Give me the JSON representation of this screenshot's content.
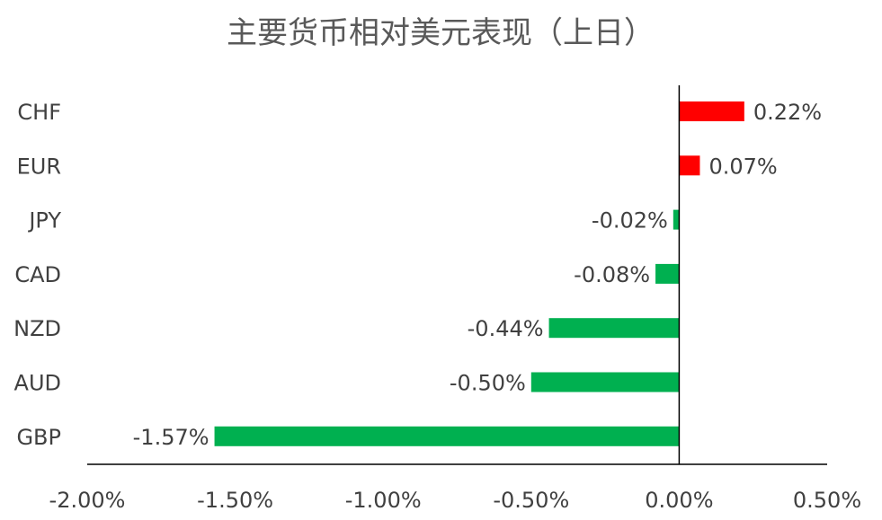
{
  "chart_data": {
    "type": "bar",
    "orientation": "horizontal",
    "title": "主要货币相对美元表现（上日）",
    "categories": [
      "CHF",
      "EUR",
      "JPY",
      "CAD",
      "NZD",
      "AUD",
      "GBP"
    ],
    "values": [
      0.22,
      0.07,
      -0.02,
      -0.08,
      -0.44,
      -0.5,
      -1.57
    ],
    "data_labels": [
      "0.22%",
      "0.07%",
      "-0.02%",
      "-0.08%",
      "-0.44%",
      "-0.50%",
      "-1.57%"
    ],
    "x_ticks": [
      -2.0,
      -1.5,
      -1.0,
      -0.5,
      0.0,
      0.5
    ],
    "x_tick_labels": [
      "-2.00%",
      "-1.50%",
      "-1.00%",
      "-0.50%",
      "0.00%",
      "0.50%"
    ],
    "xlim": [
      -2.0,
      0.5
    ],
    "xlabel": "",
    "ylabel": "",
    "grid": false,
    "legend": "none",
    "colors": {
      "positive": "#FF0000",
      "negative": "#00B050"
    }
  }
}
